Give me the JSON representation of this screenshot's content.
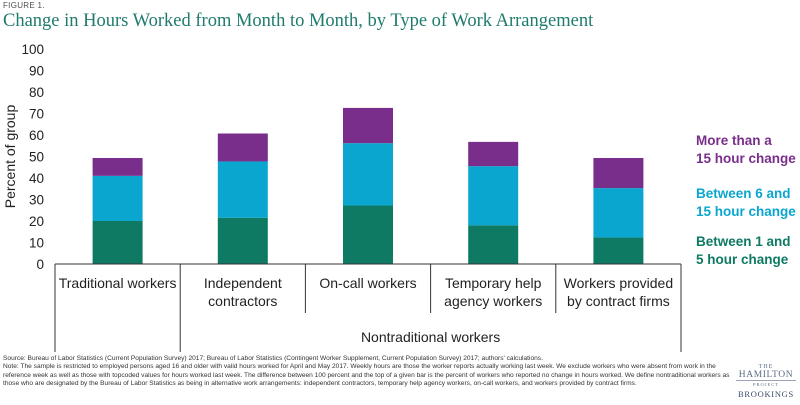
{
  "figure_label": "FIGURE 1.",
  "chart_data": {
    "type": "bar",
    "stacked": true,
    "title": "Change in Hours Worked from Month to Month, by Type of Work Arrangement",
    "ylabel": "Percent of group",
    "ylim": [
      0,
      100
    ],
    "yticks": [
      0,
      10,
      20,
      30,
      40,
      50,
      60,
      70,
      80,
      90,
      100
    ],
    "categories": [
      "Traditional workers",
      "Independent\ncontractors",
      "On-call workers",
      "Temporary help\nagency workers",
      "Workers provided\nby contract firms"
    ],
    "group_label": "Nontraditional workers",
    "series": [
      {
        "name": "Between 1 and\n5 hour change",
        "color": "#0e7a63",
        "values": [
          20,
          21.5,
          27.2,
          18,
          12.3
        ]
      },
      {
        "name": "Between 6 and\n15 hour change",
        "color": "#0aa6cf",
        "values": [
          21,
          26.2,
          29,
          27.5,
          23
        ]
      },
      {
        "name": "More than a\n15 hour change",
        "color": "#7a2e8b",
        "values": [
          8.3,
          13,
          16.4,
          11.3,
          14
        ]
      }
    ],
    "legend_position": "right"
  },
  "footnote": {
    "source": "Source: Bureau of Labor Statistics (Current Population Survey) 2017; Bureau of Labor Statistics (Contingent Worker Supplement, Current Population Survey) 2017; authors' calculations.",
    "note": "Note: The sample is restricted to employed persons aged 16 and older with valid hours worked for April and May 2017. Weekly hours are those the worker reports actually working last week. We exclude workers who were absent from work in the reference week as well as those with topcoded values for hours worked last week. The difference between 100 percent and the top of a given bar is the percent of workers who reported no change in hours worked. We define nontraditional workers as those who are designated by the Bureau of Labor Statistics as being in alternative work arrangements: independent contractors, temporary help agency workers, on-call workers, and workers provided by contract firms."
  },
  "logo": {
    "the": "THE",
    "hamilton": "HAMILTON",
    "project": "PROJECT",
    "brookings": "BROOKINGS"
  }
}
